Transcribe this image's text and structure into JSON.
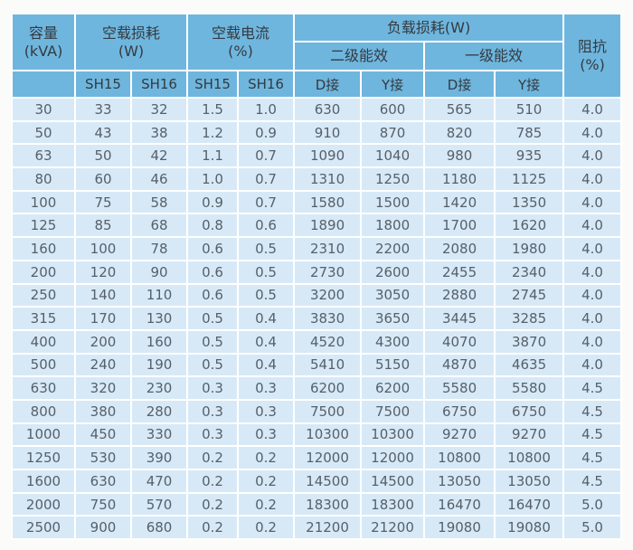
{
  "colors": {
    "page_bg": "#fbfbfa",
    "header_bg": "#6fb6de",
    "cell_bg": "#d7e9f7",
    "grid": "#ffffff",
    "header_text": "#333a40",
    "cell_text": "#566069"
  },
  "chart_data": {
    "type": "table",
    "header": {
      "capacity": "容量\n(kVA)",
      "no_load_loss": "空载损耗\n(W)",
      "no_load_current": "空载电流\n(%)",
      "load_loss": "负载损耗(W)",
      "tier2": "二级能效",
      "tier1": "一级能效",
      "impedance": "阻抗\n(%)",
      "subcolumns": [
        "SH15",
        "SH16",
        "SH15",
        "SH16",
        "D接",
        "Y接",
        "D接",
        "Y接"
      ]
    },
    "columns": [
      "容量(kVA)",
      "空载损耗(W) SH15",
      "空载损耗(W) SH16",
      "空载电流(%) SH15",
      "空载电流(%) SH16",
      "负载损耗(W) 二级能效 D接",
      "负载损耗(W) 二级能效 Y接",
      "负载损耗(W) 一级能效 D接",
      "负载损耗(W) 一级能效 Y接",
      "阻抗(%)"
    ],
    "rows": [
      [
        "30",
        "33",
        "32",
        "1.5",
        "1.0",
        "630",
        "600",
        "565",
        "510",
        "4.0"
      ],
      [
        "50",
        "43",
        "38",
        "1.2",
        "0.9",
        "910",
        "870",
        "820",
        "785",
        "4.0"
      ],
      [
        "63",
        "50",
        "42",
        "1.1",
        "0.7",
        "1090",
        "1040",
        "980",
        "935",
        "4.0"
      ],
      [
        "80",
        "60",
        "46",
        "1.0",
        "0.7",
        "1310",
        "1250",
        "1180",
        "1125",
        "4.0"
      ],
      [
        "100",
        "75",
        "58",
        "0.9",
        "0.7",
        "1580",
        "1500",
        "1420",
        "1350",
        "4.0"
      ],
      [
        "125",
        "85",
        "68",
        "0.8",
        "0.6",
        "1890",
        "1800",
        "1700",
        "1620",
        "4.0"
      ],
      [
        "160",
        "100",
        "78",
        "0.6",
        "0.5",
        "2310",
        "2200",
        "2080",
        "1980",
        "4.0"
      ],
      [
        "200",
        "120",
        "90",
        "0.6",
        "0.5",
        "2730",
        "2600",
        "2455",
        "2340",
        "4.0"
      ],
      [
        "250",
        "140",
        "110",
        "0.6",
        "0.5",
        "3200",
        "3050",
        "2880",
        "2745",
        "4.0"
      ],
      [
        "315",
        "170",
        "130",
        "0.5",
        "0.4",
        "3830",
        "3650",
        "3445",
        "3285",
        "4.0"
      ],
      [
        "400",
        "200",
        "160",
        "0.5",
        "0.4",
        "4520",
        "4300",
        "4070",
        "3870",
        "4.0"
      ],
      [
        "500",
        "240",
        "190",
        "0.5",
        "0.4",
        "5410",
        "5150",
        "4870",
        "4635",
        "4.0"
      ],
      [
        "630",
        "320",
        "230",
        "0.3",
        "0.3",
        "6200",
        "6200",
        "5580",
        "5580",
        "4.5"
      ],
      [
        "800",
        "380",
        "280",
        "0.3",
        "0.3",
        "7500",
        "7500",
        "6750",
        "6750",
        "4.5"
      ],
      [
        "1000",
        "450",
        "330",
        "0.3",
        "0.3",
        "10300",
        "10300",
        "9270",
        "9270",
        "4.5"
      ],
      [
        "1250",
        "530",
        "390",
        "0.2",
        "0.2",
        "12000",
        "12000",
        "10800",
        "10800",
        "4.5"
      ],
      [
        "1600",
        "630",
        "470",
        "0.2",
        "0.2",
        "14500",
        "14500",
        "13050",
        "13050",
        "4.5"
      ],
      [
        "2000",
        "750",
        "570",
        "0.2",
        "0.2",
        "18300",
        "18300",
        "16470",
        "16470",
        "5.0"
      ],
      [
        "2500",
        "900",
        "680",
        "0.2",
        "0.2",
        "21200",
        "21200",
        "19080",
        "19080",
        "5.0"
      ]
    ]
  }
}
